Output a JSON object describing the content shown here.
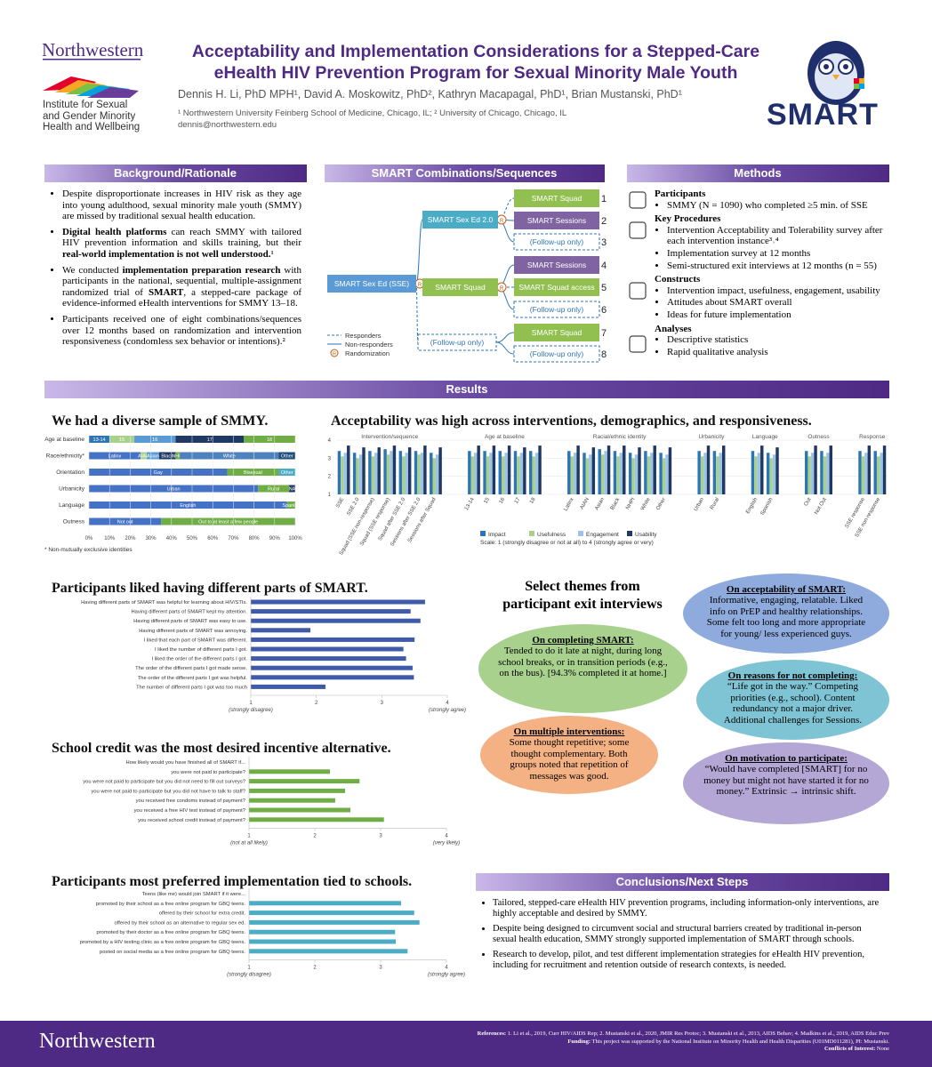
{
  "header": {
    "institution": "Northwestern",
    "institute_lines": [
      "Institute for Sexual",
      "and Gender Minority",
      "Health and Wellbeing"
    ],
    "title_lines": [
      "Acceptability and Implementation Considerations for a Stepped-Care",
      "eHealth HIV Prevention Program for Sexual Minority Male Youth"
    ],
    "authors": "Dennis H. Li, PhD MPH¹, David A. Moskowitz, PhD², Kathryn Macapagal, PhD¹, Brian Mustanski, PhD¹",
    "affiliations": "¹ Northwestern University Feinberg School of Medicine, Chicago, IL; ² University of Chicago, Chicago, IL",
    "email": "dennis@northwestern.edu",
    "logo": "SMART"
  },
  "background": {
    "title": "Background/Rationale",
    "bullets": [
      [
        "Despite disproportionate increases in HIV risk as they age into young adulthood, sexual minority male youth (SMMY) are missed by traditional sexual health education."
      ],
      [
        {
          "text": "Digital health platforms",
          "bold": true
        },
        " can reach SMMY with tailored HIV prevention information and skills training, but their ",
        {
          "text": "real-world implementation is not well understood.",
          "bold": true
        },
        "¹"
      ],
      [
        "We conducted ",
        {
          "text": "implementation preparation research",
          "bold": true
        },
        " with participants in the national, sequential, multiple-assignment randomized trial of ",
        {
          "text": "SMART",
          "bold": true
        },
        ", a stepped-care package of evidence-informed eHealth interventions for SMMY 13–18."
      ],
      [
        "Participants received one of eight combinations/sequences over 12 months based on randomization and intervention responsiveness (condomless sex behavior or intentions).²"
      ]
    ]
  },
  "smart": {
    "title": "SMART Combinations/Sequences",
    "nodes": [
      "SMART Sex Ed (SSE)",
      "SMART Sex Ed 2.0",
      "SMART Squad",
      "(Follow-up only)",
      "SMART Squad",
      "SMART Sessions",
      "(Follow-up only)",
      "SMART Sessions",
      "SMART Squad access",
      "(Follow-up only)",
      "SMART Squad",
      "(Follow-up only)"
    ],
    "numbers": [
      "1",
      "2",
      "3",
      "4",
      "5",
      "6",
      "7",
      "8"
    ],
    "randomization_mark": "R",
    "legend": [
      "Responders",
      "Non-responders",
      "Randomization"
    ]
  },
  "methods": {
    "title": "Methods",
    "sections": [
      {
        "heading": "Participants",
        "items": [
          "SMMY (N = 1090) who completed ≥5 min. of SSE"
        ]
      },
      {
        "heading": "Key Procedures",
        "items": [
          "Intervention Acceptability and Tolerability survey after each intervention instance³˒⁴",
          "Implementation survey at 12 months",
          "Semi-structured exit interviews at 12 months (n = 55)"
        ]
      },
      {
        "heading": "Constructs",
        "items": [
          "Intervention impact, usefulness, engagement, usability",
          "Attitudes about SMART overall",
          "Ideas for future implementation"
        ]
      },
      {
        "heading": "Analyses",
        "items": [
          "Descriptive statistics",
          "Rapid qualitative analysis"
        ]
      }
    ]
  },
  "results_title": "Results",
  "chart_data": [
    {
      "type": "stacked_barh",
      "title": "We had a diverse sample of SMMY.",
      "rows": [
        {
          "label": "Age at baseline",
          "segments": [
            {
              "name": "13-14",
              "value": 10,
              "color": "#2e75b6"
            },
            {
              "name": "15",
              "value": 12,
              "color": "#a9d18e"
            },
            {
              "name": "16",
              "value": 20,
              "color": "#5b9bd5"
            },
            {
              "name": "17",
              "value": 33,
              "color": "#203864"
            },
            {
              "name": "18",
              "value": 25,
              "color": "#70ad47"
            }
          ]
        },
        {
          "label": "Race/ethnicity*",
          "segments": [
            {
              "name": "Latinx",
              "value": 25,
              "color": "#4472c4"
            },
            {
              "name": "AIAN",
              "value": 3,
              "color": "#a9d18e"
            },
            {
              "name": "Asian",
              "value": 6,
              "color": "#5b9bd5"
            },
            {
              "name": "Black",
              "value": 8,
              "color": "#203864"
            },
            {
              "name": "NHPI",
              "value": 2,
              "color": "#70ad47"
            },
            {
              "name": "White",
              "value": 48,
              "color": "#4f81bd"
            },
            {
              "name": "Other",
              "value": 8,
              "color": "#1f4e79"
            }
          ]
        },
        {
          "label": "Orientation",
          "segments": [
            {
              "name": "Gay",
              "value": 67,
              "color": "#4472c4"
            },
            {
              "name": "Bisexual",
              "value": 25,
              "color": "#70ad47"
            },
            {
              "name": "Other",
              "value": 8,
              "color": "#4bacc6"
            }
          ]
        },
        {
          "label": "Urbanicity",
          "segments": [
            {
              "name": "Urban",
              "value": 82,
              "color": "#4472c4"
            },
            {
              "name": "Rural",
              "value": 15,
              "color": "#70ad47"
            },
            {
              "name": "NA",
              "value": 3,
              "color": "#1f3864"
            }
          ]
        },
        {
          "label": "Language",
          "segments": [
            {
              "name": "English",
              "value": 96,
              "color": "#4472c4"
            },
            {
              "name": "Spanish",
              "value": 4,
              "color": "#70ad47"
            }
          ]
        },
        {
          "label": "Outness",
          "segments": [
            {
              "name": "Not out",
              "value": 35,
              "color": "#4472c4"
            },
            {
              "name": "Out to at least a few people",
              "value": 65,
              "color": "#70ad47"
            }
          ]
        }
      ],
      "xlim": [
        0,
        100
      ],
      "xticks": [
        {
          "value": 0,
          "label": "0%"
        },
        {
          "value": 10,
          "label": "10%"
        },
        {
          "value": 20,
          "label": "20%"
        },
        {
          "value": 30,
          "label": "30%"
        },
        {
          "value": 40,
          "label": "40%"
        },
        {
          "value": 50,
          "label": "50%"
        },
        {
          "value": 60,
          "label": "60%"
        },
        {
          "value": 70,
          "label": "70%"
        },
        {
          "value": 80,
          "label": "80%"
        },
        {
          "value": 90,
          "label": "90%"
        },
        {
          "value": 100,
          "label": "100%"
        }
      ],
      "note": "* Non-mutually exclusive identities"
    },
    {
      "type": "bar",
      "title": "Acceptability was high across interventions, demographics, and responsiveness.",
      "groups": [
        {
          "name": "Intervention/sequence",
          "categories": [
            "SSE",
            "SSE 2.0",
            "Squad (SSE non-response)",
            "Squad (SSE response)",
            "Squad after SSE 2.0",
            "Sessions after SSE 2.0",
            "Sessions after Squad"
          ]
        },
        {
          "name": "Age at baseline",
          "categories": [
            "13-14",
            "15",
            "16",
            "17",
            "18"
          ]
        },
        {
          "name": "Racial/ethnic identity",
          "categories": [
            "Latinx",
            "AIAN",
            "Asian",
            "Black",
            "NHPI",
            "White",
            "Other"
          ]
        },
        {
          "name": "Urbanicity",
          "categories": [
            "Urban",
            "Rural"
          ]
        },
        {
          "name": "Language",
          "categories": [
            "English",
            "Spanish"
          ]
        },
        {
          "name": "Outness",
          "categories": [
            "Out",
            "Not Out"
          ]
        },
        {
          "name": "Response",
          "categories": [
            "SSE response",
            "SSE non-response"
          ]
        }
      ],
      "series": [
        {
          "name": "Impact",
          "color": "#2e75b6",
          "values": [
            3.4,
            3.3,
            3.4,
            3.5,
            3.4,
            3.4,
            3.3,
            3.4,
            3.4,
            3.4,
            3.4,
            3.4,
            3.4,
            3.3,
            3.5,
            3.4,
            3.3,
            3.4,
            3.3,
            3.4,
            3.4,
            3.4,
            3.3,
            3.4,
            3.4,
            3.4,
            3.4
          ]
        },
        {
          "name": "Usefulness",
          "color": "#a9d18e",
          "values": [
            3.1,
            3.0,
            3.1,
            3.2,
            3.1,
            3.2,
            3.0,
            3.1,
            3.1,
            3.1,
            3.1,
            3.1,
            3.1,
            3.0,
            3.2,
            3.1,
            3.0,
            3.1,
            3.0,
            3.1,
            3.1,
            3.1,
            3.0,
            3.1,
            3.1,
            3.1,
            3.1
          ]
        },
        {
          "name": "Engagement",
          "color": "#9dc3e6",
          "values": [
            3.3,
            3.2,
            3.3,
            3.4,
            3.3,
            3.3,
            3.2,
            3.3,
            3.3,
            3.3,
            3.3,
            3.3,
            3.3,
            3.2,
            3.4,
            3.3,
            3.2,
            3.3,
            3.2,
            3.3,
            3.3,
            3.3,
            3.2,
            3.3,
            3.3,
            3.3,
            3.3
          ]
        },
        {
          "name": "Usability",
          "color": "#203864",
          "values": [
            3.7,
            3.6,
            3.6,
            3.7,
            3.6,
            3.7,
            3.6,
            3.7,
            3.7,
            3.7,
            3.6,
            3.7,
            3.7,
            3.6,
            3.7,
            3.7,
            3.6,
            3.7,
            3.6,
            3.7,
            3.7,
            3.7,
            3.6,
            3.7,
            3.7,
            3.7,
            3.7
          ]
        }
      ],
      "ylim": [
        1,
        4
      ],
      "yticks": [
        1,
        2,
        3,
        4
      ],
      "note": "Scale: 1 (strongly disagree or not at all) to 4 (strongly agree or very)"
    },
    {
      "type": "barh",
      "title": "Participants liked having different parts of SMART.",
      "categories": [
        "Having different parts of SMART was helpful for learning about HIV/STIs.",
        "Having different parts of SMART kept my attention.",
        "Having different parts of SMART was easy to use.",
        "Having different parts of SMART was annoying.",
        "I liked that each part of SMART was different.",
        "I liked the number of different parts I got.",
        "I liked the order of the different parts I got.",
        "The order of the different parts I got made sense.",
        "The order of the different parts I got was helpful.",
        "The number of different parts I got was too much"
      ],
      "values": [
        3.66,
        3.44,
        3.59,
        1.91,
        3.5,
        3.33,
        3.37,
        3.47,
        3.49,
        2.14
      ],
      "color": "#3f5aa8",
      "xlim": [
        1,
        4
      ],
      "xticks": [
        1,
        2,
        3,
        4
      ],
      "scale_labels": [
        "(strongly disagree)",
        "(strongly agree)"
      ]
    },
    {
      "type": "barh",
      "title": "School credit was the most desired incentive alternative.",
      "categories": [
        "How likely would you have finished all of SMART if...",
        "you were not paid to participate?",
        "you were not paid to participate but you did not need to fill out surveys?",
        "you were not paid to participate but you did not have to talk to staff?",
        "you received free condoms instead of payment?",
        "you received a free HIV test instead of payment?",
        "you received school credit instead of payment?"
      ],
      "values": [
        null,
        2.23,
        2.68,
        2.46,
        2.31,
        2.54,
        3.05
      ],
      "color": "#70ad47",
      "xlim": [
        1,
        4
      ],
      "xticks": [
        1,
        2,
        3,
        4
      ],
      "scale_labels": [
        "(not at all likely)",
        "(very likely)"
      ]
    },
    {
      "type": "barh",
      "title": "Participants most preferred implementation tied to schools.",
      "categories": [
        "Teens (like me) would join SMART if it were...",
        "promoted by their school as a free online program for GBQ teens.",
        "offered by their school for extra credit.",
        "offered by their school as an alternative to regular sex ed.",
        "promoted by their doctor as a free online program for GBQ teens.",
        "promoted by a HIV testing clinic as a free online program for GBQ teens.",
        "posted on social media as a free online program for GBQ teens."
      ],
      "values": [
        null,
        3.31,
        3.51,
        3.59,
        3.22,
        3.23,
        3.41
      ],
      "color": "#4bacc6",
      "xlim": [
        1,
        4
      ],
      "xticks": [
        1,
        2,
        3,
        4
      ],
      "scale_labels": [
        "(strongly disagree)",
        "(strongly agree)"
      ]
    }
  ],
  "themes": {
    "title_lines": [
      "Select themes from",
      "participant exit interviews"
    ],
    "bubbles": [
      {
        "title": "On acceptability of SMART:",
        "text": "Informative, engaging, relatable. Liked info on PrEP and healthy relationships. Some felt too long and more appropriate for young/ less experienced guys.",
        "color": "#8faadc"
      },
      {
        "title": "On completing SMART:",
        "text": "Tended to do it late at night, during long school breaks, or in transition periods (e.g., on the bus). [94.3% completed it at home.]",
        "color": "#a9d18e"
      },
      {
        "title": "On reasons for not completing:",
        "text": "“Life got in the way.” Competing priorities (e.g., school). Content redundancy not a major driver. Additional challenges for Sessions.",
        "color": "#7fc4d4"
      },
      {
        "title": "On multiple interventions:",
        "text": "Some thought repetitive; some thought complementary. Both groups noted that repetition of messages was good.",
        "color": "#f4b183"
      },
      {
        "title": "On motivation to participate:",
        "text": "“Would have completed [SMART] for no money but might not have started it for no money.” Extrinsic → intrinsic shift.",
        "color": "#b4a7d6"
      }
    ]
  },
  "conclusions": {
    "title": "Conclusions/Next Steps",
    "bullets": [
      "Tailored, stepped-care eHealth HIV prevention programs, including information-only interventions, are highly acceptable and desired by SMMY.",
      "Despite being designed to circumvent social and structural barriers created by traditional in-person sexual health education, SMMY strongly supported implementation of SMART through schools.",
      "Research to develop, pilot, and test different implementation strategies for eHealth HIV prevention, including for recruitment and retention outside of research contexts, is needed."
    ]
  },
  "footer": {
    "logo": "Northwestern",
    "references_label": "References:",
    "references": "1. Li et al., 2019, Curr HIV/AIDS Rep; 2. Mustanski et al., 2020, JMIR Res Protoc; 3. Mustanski et al., 2013, AIDS Behav; 4. Madkins et al., 2019, AIDS Educ Prev",
    "funding_label": "Funding:",
    "funding": "This project was supported by the National Institute on Minority Health and Health Disparities (U01MD011281), PI: Mustanski.",
    "conflicts_label": "Conflicts of Interest:",
    "conflicts": "None"
  }
}
